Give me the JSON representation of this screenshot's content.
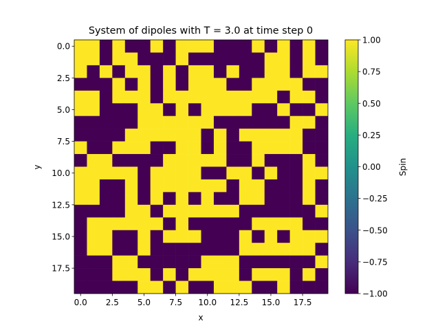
{
  "chart_data": {
    "type": "heatmap",
    "title": "System of dipoles with T = 3.0 at time step 0",
    "xlabel": "x",
    "ylabel": "y",
    "x_extent": [
      -0.5,
      19.5
    ],
    "y_extent": [
      19.5,
      -0.5
    ],
    "x_ticks": [
      "0.0",
      "2.5",
      "5.0",
      "7.5",
      "10.0",
      "12.5",
      "15.0",
      "17.5"
    ],
    "y_ticks": [
      "0.0",
      "2.5",
      "5.0",
      "7.5",
      "10.0",
      "12.5",
      "15.0",
      "17.5"
    ],
    "x_tick_values": [
      0,
      2.5,
      5,
      7.5,
      10,
      12.5,
      15,
      17.5
    ],
    "y_tick_values": [
      0,
      2.5,
      5,
      7.5,
      10,
      12.5,
      15,
      17.5
    ],
    "colorbar": {
      "label": "Spin",
      "range": [
        -1.0,
        1.0
      ],
      "ticks": [
        "1.00",
        "0.75",
        "0.50",
        "0.25",
        "0.00",
        "−0.25",
        "−0.50",
        "−0.75",
        "−1.00"
      ],
      "tick_values": [
        1.0,
        0.75,
        0.5,
        0.25,
        0.0,
        -0.25,
        -0.5,
        -0.75,
        -1.0
      ],
      "colormap": "viridis"
    },
    "colors": {
      "spin_up": "#fde725",
      "spin_down": "#440154"
    },
    "values": [
      [
        1,
        1,
        -1,
        1,
        -1,
        -1,
        1,
        -1,
        1,
        1,
        1,
        -1,
        -1,
        -1,
        1,
        -1,
        1,
        -1,
        1,
        -1
      ],
      [
        1,
        1,
        -1,
        1,
        1,
        -1,
        -1,
        -1,
        1,
        -1,
        -1,
        -1,
        -1,
        -1,
        -1,
        1,
        1,
        -1,
        1,
        -1
      ],
      [
        1,
        -1,
        1,
        -1,
        1,
        1,
        -1,
        1,
        -1,
        1,
        1,
        -1,
        1,
        -1,
        -1,
        1,
        1,
        -1,
        1,
        1
      ],
      [
        -1,
        -1,
        -1,
        1,
        -1,
        1,
        -1,
        1,
        -1,
        1,
        1,
        1,
        -1,
        -1,
        1,
        1,
        1,
        1,
        -1,
        -1
      ],
      [
        1,
        1,
        -1,
        1,
        1,
        1,
        -1,
        1,
        1,
        1,
        1,
        1,
        1,
        1,
        1,
        1,
        -1,
        1,
        1,
        -1
      ],
      [
        1,
        1,
        -1,
        -1,
        -1,
        1,
        1,
        -1,
        1,
        -1,
        1,
        1,
        1,
        1,
        -1,
        -1,
        1,
        -1,
        -1,
        1
      ],
      [
        -1,
        -1,
        -1,
        -1,
        -1,
        1,
        1,
        1,
        1,
        1,
        1,
        -1,
        -1,
        -1,
        -1,
        -1,
        -1,
        1,
        1,
        -1
      ],
      [
        -1,
        -1,
        -1,
        -1,
        1,
        1,
        1,
        1,
        1,
        1,
        -1,
        1,
        -1,
        1,
        1,
        1,
        1,
        1,
        -1,
        -1
      ],
      [
        1,
        -1,
        -1,
        1,
        1,
        1,
        -1,
        -1,
        1,
        1,
        -1,
        1,
        -1,
        -1,
        1,
        1,
        1,
        1,
        -1,
        -1
      ],
      [
        -1,
        1,
        1,
        -1,
        -1,
        -1,
        -1,
        1,
        1,
        1,
        1,
        1,
        -1,
        -1,
        1,
        -1,
        -1,
        -1,
        1,
        -1
      ],
      [
        1,
        1,
        1,
        1,
        1,
        -1,
        1,
        1,
        1,
        1,
        -1,
        -1,
        1,
        1,
        -1,
        1,
        -1,
        -1,
        1,
        1
      ],
      [
        1,
        1,
        -1,
        -1,
        1,
        -1,
        1,
        1,
        1,
        1,
        1,
        1,
        -1,
        1,
        1,
        -1,
        -1,
        -1,
        1,
        -1
      ],
      [
        1,
        1,
        -1,
        -1,
        1,
        -1,
        1,
        -1,
        1,
        -1,
        1,
        -1,
        -1,
        1,
        1,
        -1,
        -1,
        -1,
        1,
        -1
      ],
      [
        -1,
        -1,
        -1,
        -1,
        1,
        1,
        -1,
        1,
        1,
        1,
        1,
        1,
        1,
        -1,
        -1,
        -1,
        -1,
        -1,
        -1,
        1
      ],
      [
        -1,
        1,
        1,
        1,
        1,
        1,
        1,
        -1,
        1,
        -1,
        -1,
        -1,
        -1,
        -1,
        1,
        1,
        1,
        1,
        -1,
        -1
      ],
      [
        -1,
        1,
        1,
        -1,
        -1,
        1,
        -1,
        1,
        1,
        1,
        -1,
        -1,
        -1,
        1,
        -1,
        1,
        -1,
        1,
        1,
        1
      ],
      [
        -1,
        1,
        1,
        -1,
        -1,
        1,
        -1,
        -1,
        -1,
        -1,
        -1,
        -1,
        -1,
        1,
        1,
        1,
        1,
        1,
        1,
        -1
      ],
      [
        -1,
        -1,
        -1,
        1,
        1,
        -1,
        -1,
        -1,
        -1,
        -1,
        1,
        1,
        1,
        -1,
        -1,
        -1,
        -1,
        -1,
        -1,
        1
      ],
      [
        -1,
        -1,
        -1,
        1,
        1,
        1,
        -1,
        1,
        -1,
        1,
        1,
        1,
        1,
        -1,
        1,
        1,
        1,
        -1,
        1,
        -1
      ],
      [
        -1,
        -1,
        -1,
        -1,
        -1,
        1,
        1,
        -1,
        1,
        -1,
        -1,
        1,
        1,
        1,
        -1,
        -1,
        1,
        -1,
        -1,
        -1
      ]
    ]
  }
}
